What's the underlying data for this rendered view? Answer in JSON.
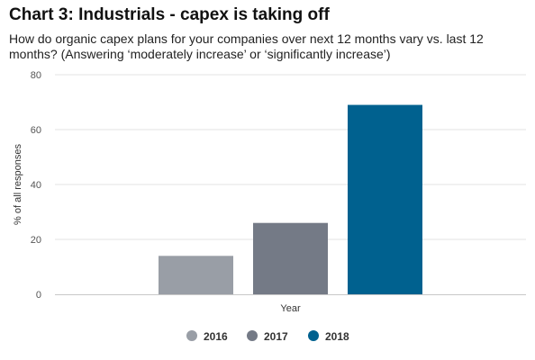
{
  "chart_data": {
    "type": "bar",
    "title": "Chart 3: Industrials - capex is taking off",
    "subtitle": "How do organic capex plans for your companies over next 12 months vary vs. last 12 months? (Answering ‘moderately increase’ or ‘significantly increase’)",
    "xlabel": "Year",
    "ylabel": "% of all responses",
    "ylim": [
      0,
      80
    ],
    "yticks": [
      0,
      20,
      40,
      60,
      80
    ],
    "grid": true,
    "legend_position": "bottom",
    "series": [
      {
        "name": "2016",
        "value": 14,
        "color": "#999ea6"
      },
      {
        "name": "2017",
        "value": 26,
        "color": "#747a86"
      },
      {
        "name": "2018",
        "value": 69,
        "color": "#00618f"
      }
    ]
  }
}
